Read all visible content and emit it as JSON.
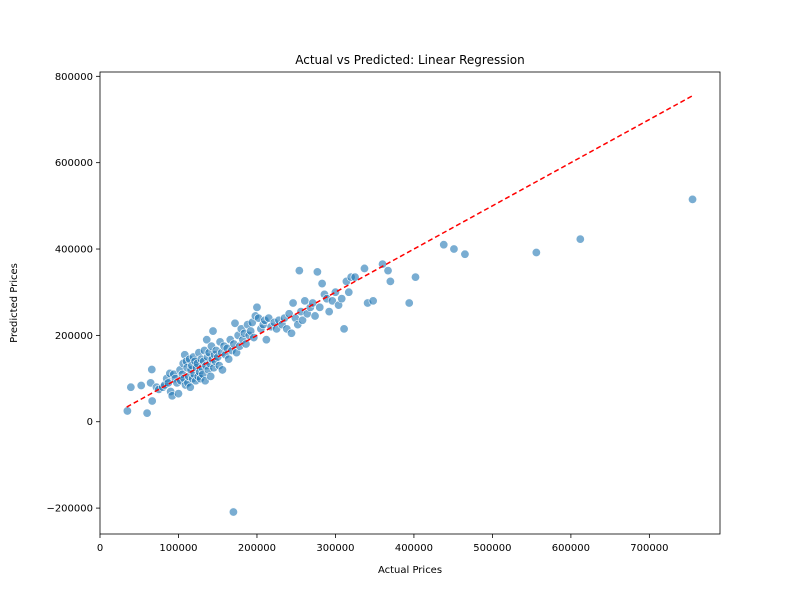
{
  "chart_data": {
    "type": "scatter",
    "title": "Actual vs Predicted: Linear Regression",
    "xlabel": "Actual Prices",
    "ylabel": "Predicted Prices",
    "xlim": [
      0,
      790000
    ],
    "ylim": [
      -260000,
      810000
    ],
    "xticks": [
      0,
      100000,
      200000,
      300000,
      400000,
      500000,
      600000,
      700000
    ],
    "xtick_labels": [
      "0",
      "100000",
      "200000",
      "300000",
      "400000",
      "500000",
      "600000",
      "700000"
    ],
    "yticks": [
      -200000,
      0,
      200000,
      400000,
      600000,
      800000
    ],
    "ytick_labels": [
      "−200000",
      "0",
      "200000",
      "400000",
      "600000",
      "800000"
    ],
    "grid": false,
    "point_color": "#1f77b4",
    "reference_line_color": "#ff0000",
    "reference_line": {
      "style": "dashed",
      "x": [
        34000,
        755000
      ],
      "y": [
        34000,
        755000
      ]
    },
    "points": [
      [
        34900,
        25000
      ],
      [
        39300,
        80000
      ],
      [
        52500,
        84000
      ],
      [
        60000,
        20000
      ],
      [
        64500,
        90000
      ],
      [
        66500,
        48000
      ],
      [
        66000,
        121000
      ],
      [
        72000,
        80000
      ],
      [
        75000,
        75000
      ],
      [
        80000,
        80000
      ],
      [
        82500,
        85000
      ],
      [
        85000,
        100000
      ],
      [
        87000,
        90000
      ],
      [
        89000,
        112000
      ],
      [
        90000,
        70000
      ],
      [
        92000,
        60000
      ],
      [
        94000,
        110000
      ],
      [
        96000,
        100000
      ],
      [
        98000,
        90000
      ],
      [
        100000,
        65000
      ],
      [
        102000,
        120000
      ],
      [
        103000,
        95000
      ],
      [
        105000,
        110000
      ],
      [
        106000,
        135000
      ],
      [
        107000,
        100000
      ],
      [
        108000,
        155000
      ],
      [
        109000,
        85000
      ],
      [
        110000,
        140000
      ],
      [
        111000,
        125000
      ],
      [
        112000,
        90000
      ],
      [
        113000,
        105000
      ],
      [
        114000,
        145000
      ],
      [
        115000,
        80000
      ],
      [
        116000,
        120000
      ],
      [
        117000,
        130000
      ],
      [
        118000,
        100000
      ],
      [
        119000,
        150000
      ],
      [
        120000,
        110000
      ],
      [
        121000,
        140000
      ],
      [
        122000,
        95000
      ],
      [
        123000,
        125000
      ],
      [
        124000,
        135000
      ],
      [
        125000,
        105000
      ],
      [
        126000,
        160000
      ],
      [
        127000,
        115000
      ],
      [
        128000,
        100000
      ],
      [
        129000,
        145000
      ],
      [
        130000,
        125000
      ],
      [
        131000,
        110000
      ],
      [
        132000,
        140000
      ],
      [
        133000,
        165000
      ],
      [
        134000,
        95000
      ],
      [
        135000,
        130000
      ],
      [
        136000,
        190000
      ],
      [
        137000,
        150000
      ],
      [
        138000,
        120000
      ],
      [
        139000,
        160000
      ],
      [
        140000,
        135000
      ],
      [
        141000,
        105000
      ],
      [
        142000,
        175000
      ],
      [
        143000,
        145000
      ],
      [
        144000,
        210000
      ],
      [
        145000,
        125000
      ],
      [
        146000,
        155000
      ],
      [
        147000,
        140000
      ],
      [
        148000,
        165000
      ],
      [
        150000,
        150000
      ],
      [
        152000,
        130000
      ],
      [
        153000,
        185000
      ],
      [
        155000,
        160000
      ],
      [
        156000,
        120000
      ],
      [
        158000,
        175000
      ],
      [
        160000,
        155000
      ],
      [
        162000,
        170000
      ],
      [
        164000,
        145000
      ],
      [
        166000,
        190000
      ],
      [
        168000,
        165000
      ],
      [
        170000,
        -209000
      ],
      [
        170500,
        180000
      ],
      [
        172000,
        228000
      ],
      [
        174000,
        160000
      ],
      [
        176000,
        200000
      ],
      [
        178000,
        175000
      ],
      [
        180000,
        215000
      ],
      [
        182000,
        190000
      ],
      [
        184000,
        205000
      ],
      [
        186000,
        180000
      ],
      [
        188000,
        225000
      ],
      [
        190000,
        200000
      ],
      [
        192000,
        210000
      ],
      [
        194000,
        230000
      ],
      [
        196000,
        195000
      ],
      [
        198000,
        245000
      ],
      [
        200000,
        265000
      ],
      [
        202000,
        240000
      ],
      [
        205000,
        215000
      ],
      [
        208000,
        225000
      ],
      [
        210000,
        235000
      ],
      [
        212000,
        190000
      ],
      [
        215000,
        240000
      ],
      [
        218000,
        220000
      ],
      [
        222000,
        230000
      ],
      [
        225000,
        215000
      ],
      [
        228000,
        235000
      ],
      [
        232000,
        225000
      ],
      [
        235000,
        240000
      ],
      [
        238000,
        215000
      ],
      [
        241000,
        250000
      ],
      [
        244000,
        205000
      ],
      [
        246000,
        275000
      ],
      [
        249000,
        240000
      ],
      [
        252000,
        225000
      ],
      [
        254000,
        350000
      ],
      [
        256000,
        255000
      ],
      [
        258000,
        235000
      ],
      [
        261000,
        280000
      ],
      [
        264000,
        250000
      ],
      [
        268000,
        265000
      ],
      [
        271000,
        275000
      ],
      [
        274000,
        245000
      ],
      [
        277000,
        347000
      ],
      [
        280000,
        265000
      ],
      [
        283000,
        320000
      ],
      [
        286000,
        295000
      ],
      [
        289000,
        285000
      ],
      [
        292000,
        255000
      ],
      [
        296000,
        280000
      ],
      [
        300000,
        300000
      ],
      [
        304000,
        270000
      ],
      [
        308000,
        285000
      ],
      [
        311000,
        215000
      ],
      [
        314000,
        325000
      ],
      [
        317000,
        300000
      ],
      [
        320000,
        335000
      ],
      [
        325000,
        335000
      ],
      [
        337000,
        355000
      ],
      [
        341000,
        275000
      ],
      [
        348000,
        280000
      ],
      [
        360000,
        365000
      ],
      [
        367000,
        350000
      ],
      [
        370000,
        325000
      ],
      [
        394000,
        275000
      ],
      [
        402000,
        335000
      ],
      [
        438000,
        410000
      ],
      [
        451000,
        400000
      ],
      [
        465000,
        388000
      ],
      [
        556000,
        392000
      ],
      [
        612000,
        423000
      ],
      [
        755000,
        515000
      ]
    ]
  }
}
